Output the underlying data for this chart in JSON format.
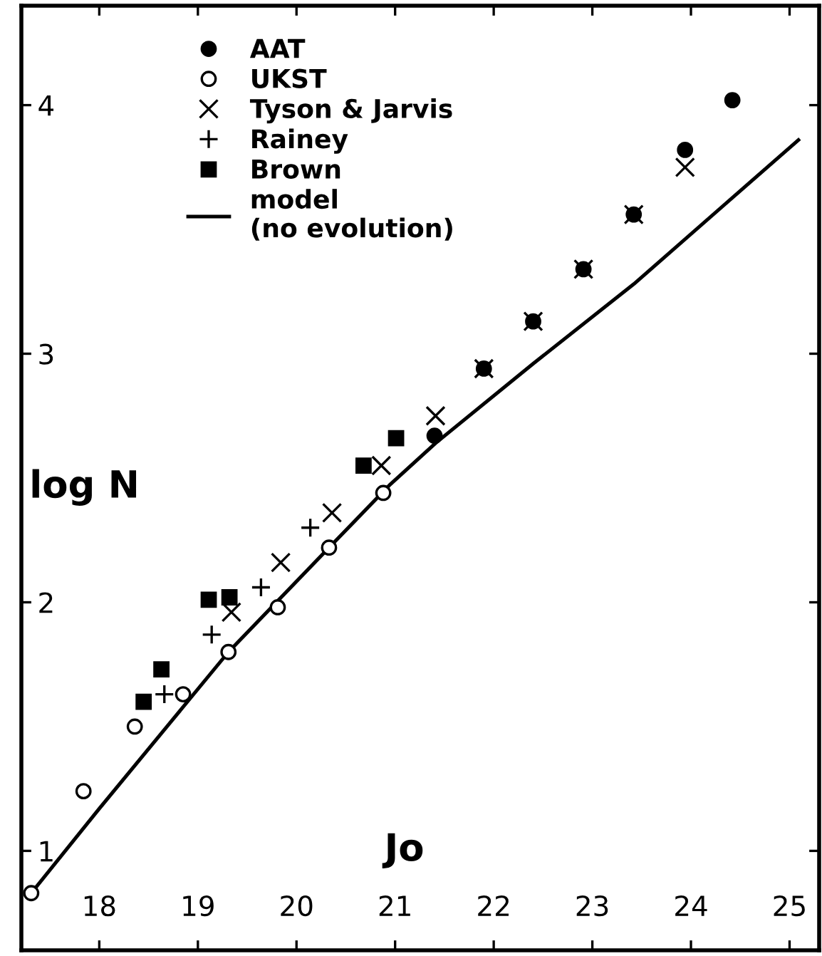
{
  "chart_data": {
    "type": "scatter",
    "xlabel": "Jo",
    "ylabel": "log N",
    "xlim": [
      17.21,
      25.3
    ],
    "ylim": [
      0.6,
      4.4
    ],
    "xticks": [
      18,
      19,
      20,
      21,
      22,
      23,
      24,
      25
    ],
    "yticks": [
      1,
      2,
      3,
      4
    ],
    "grid": false,
    "legend": "top left",
    "series": [
      {
        "name": "AAT",
        "marker": "circle",
        "color": "#000000",
        "x": [
          21.4,
          21.9,
          22.4,
          22.91,
          23.42,
          23.94,
          24.42
        ],
        "values": [
          2.67,
          2.94,
          3.13,
          3.34,
          3.56,
          3.82,
          4.02
        ]
      },
      {
        "name": "UKST",
        "marker": "circle",
        "color": "#ffffff",
        "x": [
          17.31,
          17.84,
          18.36,
          18.85,
          19.31,
          19.81,
          20.33,
          20.88
        ],
        "values": [
          0.83,
          1.24,
          1.5,
          1.63,
          1.8,
          1.98,
          2.22,
          2.44
        ]
      },
      {
        "name": "Tyson & Jarvis",
        "marker": "cross",
        "color": "#000000",
        "x": [
          19.34,
          19.84,
          20.36,
          20.86,
          21.41,
          21.9,
          22.4,
          22.91,
          23.42,
          23.94
        ],
        "values": [
          1.96,
          2.16,
          2.36,
          2.55,
          2.75,
          2.94,
          3.13,
          3.34,
          3.56,
          3.75
        ]
      },
      {
        "name": "Rainey",
        "marker": "plus",
        "color": "#000000",
        "x": [
          18.66,
          19.14,
          19.64,
          20.14
        ],
        "values": [
          1.63,
          1.87,
          2.06,
          2.3
        ]
      },
      {
        "name": "Brown",
        "marker": "square",
        "color": "#000000",
        "x": [
          18.45,
          18.63,
          19.11,
          19.32,
          20.68,
          21.01
        ],
        "values": [
          1.6,
          1.73,
          2.01,
          2.02,
          2.55,
          2.66
        ]
      },
      {
        "name": "model\n(no evolution)",
        "type": "line",
        "marker": "none",
        "line_style": "solid",
        "color": "#000000",
        "x": [
          17.31,
          18.0,
          19.31,
          20.33,
          20.94,
          21.41,
          22.4,
          23.42,
          25.09
        ],
        "values": [
          0.83,
          1.17,
          1.8,
          2.22,
          2.47,
          2.64,
          2.96,
          3.28,
          3.86
        ]
      }
    ]
  }
}
